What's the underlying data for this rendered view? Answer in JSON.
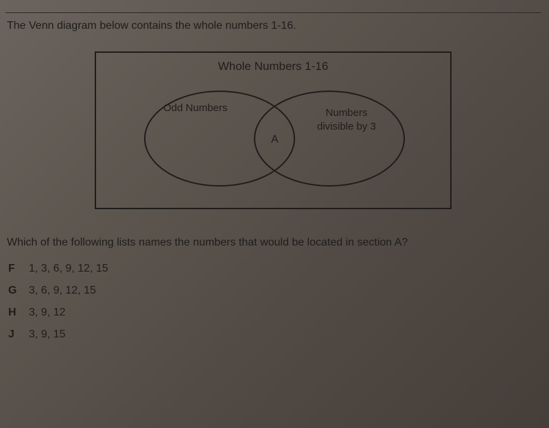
{
  "prompt": "The Venn diagram below contains the whole numbers 1-16.",
  "venn": {
    "title": "Whole Numbers 1-16",
    "left_label": "Odd Numbers",
    "right_label_line1": "Numbers",
    "right_label_line2": "divisible by 3",
    "intersection_label": "A",
    "box_border_color": "#1f1c1a",
    "ellipse_border_color": "#1f1c1a"
  },
  "question": "Which of the following lists names the numbers that would be located in section A?",
  "options": [
    {
      "letter": "F",
      "text": "1, 3, 6, 9, 12, 15"
    },
    {
      "letter": "G",
      "text": "3, 6, 9, 12, 15"
    },
    {
      "letter": "H",
      "text": "3, 9, 12"
    },
    {
      "letter": "J",
      "text": "3, 9, 15"
    }
  ],
  "colors": {
    "page_bg_from": "#6b645e",
    "page_bg_to": "#453e39",
    "text": "#1f1c1a"
  },
  "fonts": {
    "body_family": "Verdana",
    "prompt_size_pt": 12,
    "title_size_pt": 13,
    "label_size_pt": 11,
    "option_size_pt": 12
  }
}
